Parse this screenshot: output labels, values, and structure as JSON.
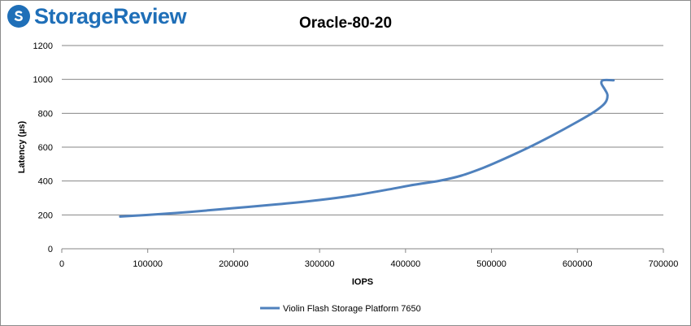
{
  "brand": {
    "name": "StorageReview",
    "accent": "#1f6fb8",
    "icon": "storagereview-logo-icon"
  },
  "chart_data": {
    "type": "line",
    "title": "Oracle-80-20",
    "xlabel": "IOPS",
    "ylabel": "Latency (µs)",
    "xlim": [
      0,
      700000
    ],
    "ylim": [
      0,
      1200
    ],
    "x_ticks": [
      "0",
      "100000",
      "200000",
      "300000",
      "400000",
      "500000",
      "600000",
      "700000"
    ],
    "y_ticks": [
      "0",
      "200",
      "400",
      "600",
      "800",
      "1000",
      "1200"
    ],
    "grid": true,
    "legend": "bottom",
    "series": [
      {
        "name": "Violin Flash Storage Platform 7650",
        "color": "#4f81bd",
        "points": [
          [
            68000,
            190
          ],
          [
            100000,
            200
          ],
          [
            150000,
            218
          ],
          [
            200000,
            240
          ],
          [
            250000,
            262
          ],
          [
            300000,
            288
          ],
          [
            340000,
            315
          ],
          [
            380000,
            350
          ],
          [
            410000,
            378
          ],
          [
            440000,
            402
          ],
          [
            465000,
            432
          ],
          [
            490000,
            477
          ],
          [
            510000,
            520
          ],
          [
            540000,
            590
          ],
          [
            570000,
            667
          ],
          [
            600000,
            750
          ],
          [
            620000,
            810
          ],
          [
            632000,
            860
          ],
          [
            635000,
            905
          ],
          [
            632000,
            940
          ],
          [
            628000,
            975
          ],
          [
            630000,
            995
          ],
          [
            642000,
            995
          ]
        ]
      }
    ]
  }
}
